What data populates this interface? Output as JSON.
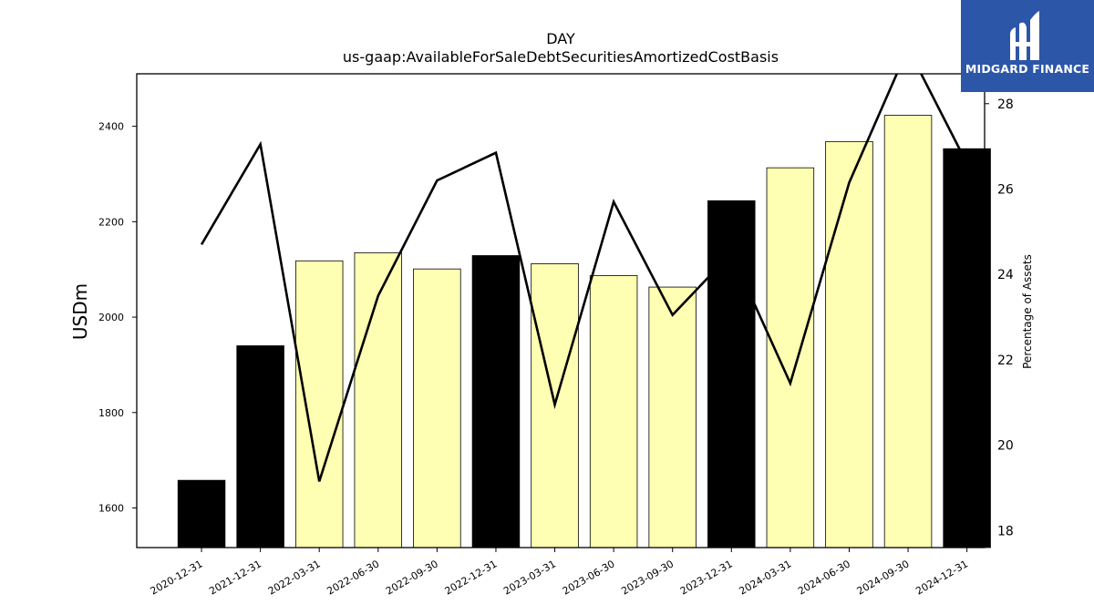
{
  "chart_data": {
    "type": "bar+line",
    "title": "DAY",
    "subtitle": "us-gaap:AvailableForSaleDebtSecuritiesAmortizedCostBasis",
    "ylabel_left": "USDm",
    "ylabel_right": "Percentage of Assets",
    "categories": [
      "2020-12-31",
      "2021-12-31",
      "2022-03-31",
      "2022-06-30",
      "2022-09-30",
      "2022-12-31",
      "2023-03-31",
      "2023-06-30",
      "2023-09-30",
      "2023-12-31",
      "2024-03-31",
      "2024-06-30",
      "2024-09-30",
      "2024-12-31"
    ],
    "bars": {
      "values": [
        1658,
        1940,
        2118,
        2135,
        2101,
        2129,
        2112,
        2087,
        2063,
        2244,
        2313,
        2368,
        2423,
        2353
      ],
      "annual": [
        true,
        true,
        false,
        false,
        false,
        true,
        false,
        false,
        false,
        true,
        false,
        false,
        false,
        true
      ]
    },
    "line": {
      "values": [
        24.7,
        27.05,
        19.15,
        23.5,
        26.2,
        26.85,
        20.95,
        25.7,
        23.05,
        24.5,
        21.45,
        26.15,
        29.3,
        26.6
      ]
    },
    "ylim_left": [
      1517,
      2510
    ],
    "ylim_right": [
      17.6,
      28.7
    ],
    "yticks_left": [
      1600,
      1800,
      2000,
      2200,
      2400
    ],
    "yticks_right": [
      18,
      20,
      22,
      24,
      26,
      28
    ],
    "colors": {
      "annual_bar": "#000000",
      "quarter_bar": "#ffffb3",
      "line": "#000000"
    }
  },
  "logo": {
    "text": "MIDGARD FINANCE",
    "color": "#2c56a8"
  }
}
